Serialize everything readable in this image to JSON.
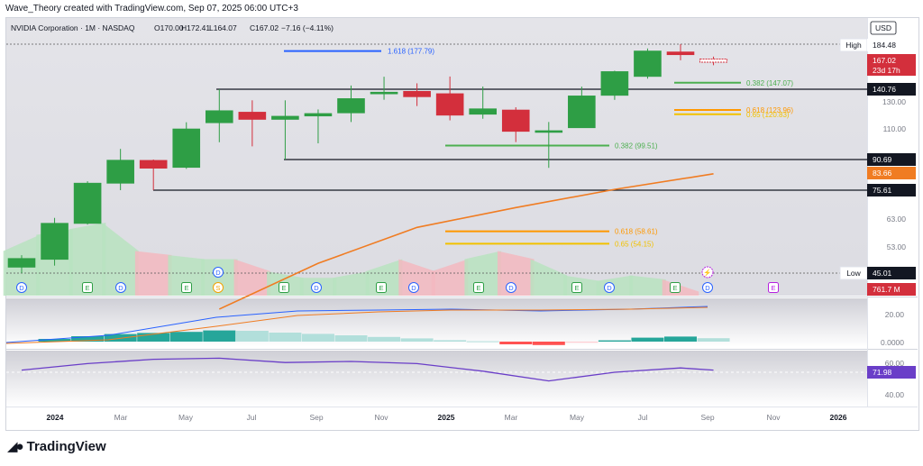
{
  "header": {
    "credit": "Wave_Theory created with TradingView.com, Sep 07, 2025 06:00 UTC+3"
  },
  "footer": {
    "brand": "TradingView"
  },
  "legend": {
    "symbol": "NVIDIA Corporation · 1M · NASDAQ",
    "open": "O170.00",
    "high": "H172.41",
    "low": "L164.07",
    "close": "C167.02",
    "change": "−7.16 (−4.11%)"
  },
  "axis": {
    "currency": "USD",
    "price_ticks": [
      "130.00",
      "110.00",
      "63.00",
      "53.00"
    ],
    "macd_ticks": [
      "20.00",
      "0.0000"
    ],
    "rsi_ticks": [
      "60.00",
      "40.00"
    ],
    "time_labels": [
      "2024",
      "Mar",
      "May",
      "Jul",
      "Sep",
      "Nov",
      "2025",
      "Mar",
      "May",
      "Jul",
      "Sep",
      "Nov",
      "2026"
    ]
  },
  "price_tags": [
    {
      "text": "High",
      "value": "184.48",
      "kind": "hilo"
    },
    {
      "text": "",
      "value": "167.02",
      "sub": "23d 17h",
      "kind": "current"
    },
    {
      "text": "",
      "value": "140.76",
      "kind": "level"
    },
    {
      "text": "",
      "value": "90.69",
      "kind": "level"
    },
    {
      "text": "",
      "value": "83.66",
      "kind": "ema"
    },
    {
      "text": "",
      "value": "75.61",
      "kind": "level"
    },
    {
      "text": "Low",
      "value": "45.01",
      "kind": "hilo"
    },
    {
      "text": "",
      "value": "761.7 M",
      "kind": "volume"
    },
    {
      "text": "",
      "value": "71.98",
      "kind": "rsi"
    }
  ],
  "fib_labels": [
    {
      "text": "1.618 (177.79)",
      "color": "#2962ff"
    },
    {
      "text": "0.382 (147.07)",
      "color": "#4caf50"
    },
    {
      "text": "0.618 (123.96)",
      "color": "#ff9800"
    },
    {
      "text": "0.65 (120.83)",
      "color": "#f2c200"
    },
    {
      "text": "0.382 (99.51)",
      "color": "#4caf50"
    },
    {
      "text": "0.618 (58.61)",
      "color": "#ff9800"
    },
    {
      "text": "0.65 (54.15)",
      "color": "#f2c200"
    }
  ],
  "event_markers": [
    "D",
    "E",
    "D",
    "E",
    "S",
    "E",
    "D",
    "E",
    "D",
    "E",
    "D",
    "E",
    "D",
    "E",
    "D",
    "E"
  ],
  "colors": {
    "up": "#2e9e45",
    "down": "#d32f3c",
    "ema": "#f07c22",
    "rsi": "#6a3ec8",
    "accent": "#2962ff"
  },
  "chart_data": [
    {
      "type": "candlestick",
      "title": "NVIDIA Corporation · 1M · NASDAQ",
      "x": [
        "2023-12",
        "2024-01",
        "2024-02",
        "2024-03",
        "2024-04",
        "2024-05",
        "2024-06",
        "2024-07",
        "2024-08",
        "2024-09",
        "2024-10",
        "2024-11",
        "2024-12",
        "2025-01",
        "2025-02",
        "2025-03",
        "2025-04",
        "2025-05",
        "2025-06",
        "2025-07",
        "2025-08",
        "2025-09"
      ],
      "open": [
        46.8,
        49.2,
        61.4,
        79.0,
        90.3,
        86.8,
        114.5,
        122.4,
        117.0,
        119.5,
        121.8,
        138.0,
        139.0,
        137.0,
        120.8,
        124.0,
        108.7,
        110.8,
        135.5,
        153.1,
        177.0,
        170.0
      ],
      "high": [
        50.5,
        63.5,
        80.0,
        97.4,
        90.7,
        114.9,
        140.76,
        131.3,
        131.3,
        124.4,
        144.4,
        152.9,
        146.5,
        153.1,
        143.4,
        126.0,
        115.1,
        143.3,
        158.7,
        180.3,
        184.48,
        172.41
      ],
      "low": [
        45.01,
        47.3,
        61.0,
        75.61,
        75.61,
        86.1,
        101.6,
        99.0,
        90.69,
        100.9,
        115.1,
        131.8,
        126.9,
        116.3,
        117.5,
        101.7,
        86.6,
        110.8,
        131.7,
        151.0,
        168.8,
        164.07
      ],
      "close": [
        49.5,
        61.5,
        79.1,
        90.4,
        86.4,
        110.0,
        123.5,
        117.0,
        119.4,
        121.4,
        132.8,
        138.3,
        134.3,
        120.1,
        124.9,
        108.4,
        108.9,
        135.1,
        157.9,
        177.9,
        174.2,
        167.02
      ],
      "ylabel": "USD"
    },
    {
      "type": "line",
      "title": "EMA",
      "x": [
        "2024-06",
        "2024-09",
        "2024-12",
        "2025-03",
        "2025-06",
        "2025-09"
      ],
      "values": [
        34,
        48,
        60,
        68,
        76,
        83.66
      ]
    },
    {
      "type": "bar",
      "title": "MACD histogram",
      "x": [
        "2024-01",
        "2024-02",
        "2024-03",
        "2024-04",
        "2024-05",
        "2024-06",
        "2024-07",
        "2024-08",
        "2024-09",
        "2024-10",
        "2024-11",
        "2024-12",
        "2025-01",
        "2025-02",
        "2025-03",
        "2025-04",
        "2025-05",
        "2025-06",
        "2025-07",
        "2025-08",
        "2025-09"
      ],
      "values": [
        1.5,
        3,
        4.2,
        4.8,
        5.4,
        6.2,
        6.0,
        5.0,
        4.3,
        3.5,
        2.6,
        1.8,
        0.8,
        0.2,
        -1.5,
        -1.9,
        -0.6,
        0.7,
        2.2,
        2.8,
        1.9
      ]
    },
    {
      "type": "line",
      "title": "RSI",
      "x": [
        "2023-12",
        "2024-02",
        "2024-04",
        "2024-06",
        "2024-08",
        "2024-10",
        "2024-12",
        "2025-02",
        "2025-04",
        "2025-06",
        "2025-08",
        "2025-09"
      ],
      "values": [
        72,
        78,
        82,
        83,
        79,
        80,
        78,
        71,
        62,
        70,
        74,
        71.98
      ]
    }
  ]
}
